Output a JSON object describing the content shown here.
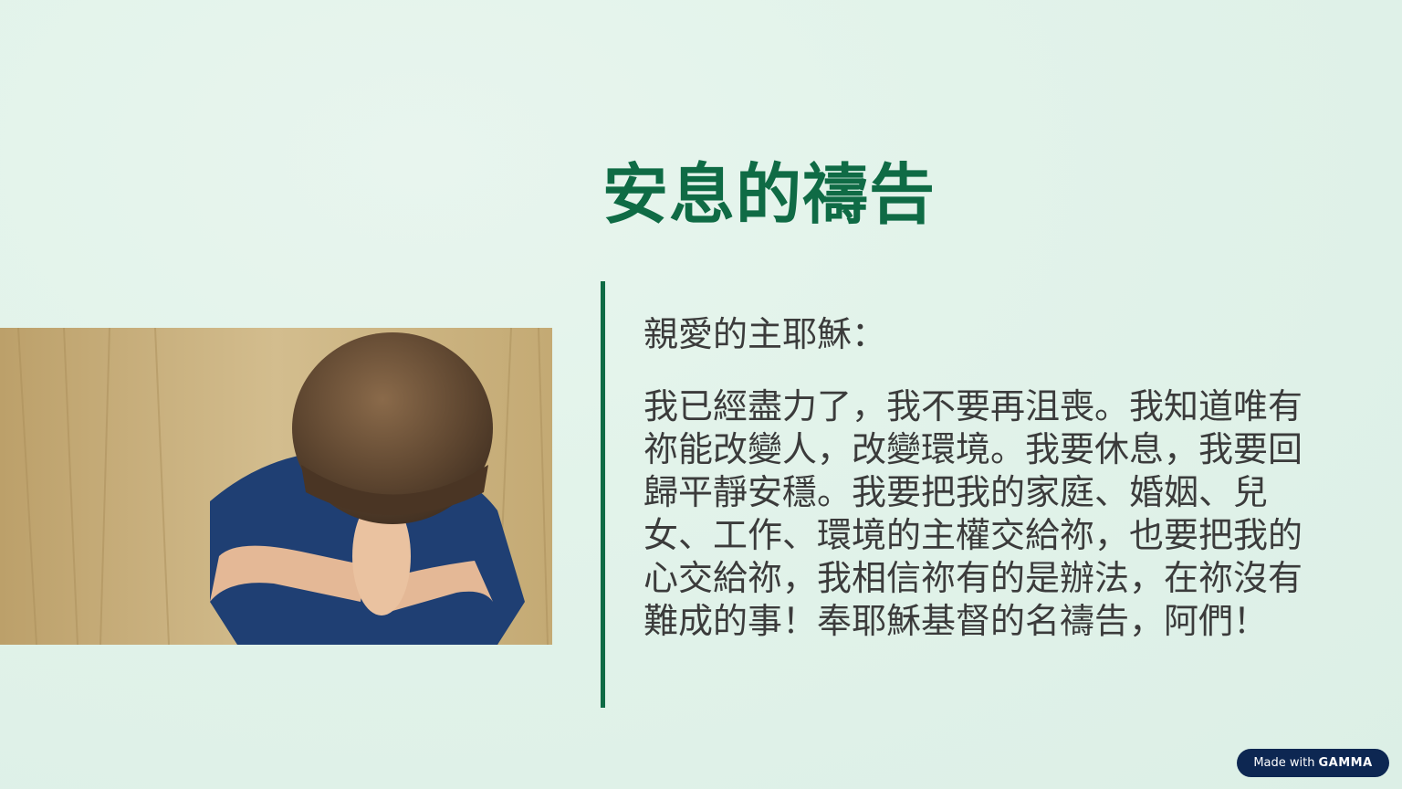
{
  "slide": {
    "title": "安息的禱告",
    "salutation": "親愛的主耶穌：",
    "prayer": "我已經盡力了，我不要再沮喪。我知道唯有祢能改變人，改變環境。我要休息，我要回歸平靜安穩。我要把我的家庭、婚姻、兒女、工作、環境的主權交給祢，也要把我的心交給祢，我相信祢有的是辦法，在祢沒有難成的事！奉耶穌基督的名禱告，阿們！"
  },
  "badge": {
    "prefix": "Made with",
    "brand": "GAMMA"
  },
  "colors": {
    "accent": "#0f6b45",
    "badge_bg": "#0d2752"
  }
}
